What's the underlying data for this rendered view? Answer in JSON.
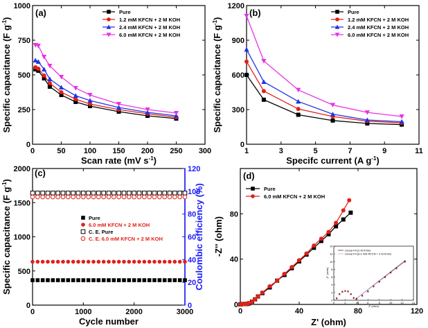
{
  "colors": {
    "pure": "#000000",
    "k12": "#e0201a",
    "k24": "#1f33e6",
    "k60": "#e633e6",
    "ce_axis": "#1a1aff"
  },
  "chart_data": [
    {
      "id": "a",
      "panel_label": "(a)",
      "type": "line",
      "xlabel": "Scan rate (mV s",
      "xlabel_sup": "-1",
      "xlabel_end": ")",
      "ylabel": "Specific capacitance (F g",
      "ylabel_sup": "-1",
      "ylabel_end": ")",
      "xlim": [
        0,
        300
      ],
      "ylim": [
        0,
        1000
      ],
      "xticks": [
        0,
        50,
        100,
        150,
        200,
        250,
        300
      ],
      "yticks": [
        0,
        250,
        500,
        750,
        1000
      ],
      "legend_position": "top-right",
      "x": [
        5,
        10,
        20,
        30,
        50,
        75,
        100,
        150,
        200,
        250
      ],
      "series": [
        {
          "name": "Pure",
          "marker": "square",
          "color": "#000000",
          "values": [
            540,
            530,
            475,
            415,
            355,
            305,
            275,
            235,
            205,
            185
          ]
        },
        {
          "name": "1.2 mM KFCN + 2 M KOH",
          "marker": "circle",
          "color": "#e0201a",
          "values": [
            555,
            545,
            495,
            440,
            375,
            325,
            290,
            250,
            220,
            195
          ]
        },
        {
          "name": "2.4 mM KFCN + 2 M KOH",
          "marker": "triangle-up",
          "color": "#1f33e6",
          "values": [
            605,
            595,
            540,
            470,
            410,
            350,
            315,
            265,
            230,
            205
          ]
        },
        {
          "name": "6.0 mM KFCN + 2 M KOH",
          "marker": "triangle-down",
          "color": "#e633e6",
          "values": [
            715,
            710,
            630,
            565,
            485,
            405,
            355,
            290,
            250,
            225
          ]
        }
      ]
    },
    {
      "id": "b",
      "panel_label": "(b)",
      "type": "line",
      "xlabel": "Specifc current (A g",
      "xlabel_sup": "-1",
      "xlabel_end": ")",
      "ylabel": "Specific capacitance (F g",
      "ylabel_sup": "-1",
      "ylabel_end": ")",
      "xlim": [
        1,
        11
      ],
      "ylim": [
        0,
        1200
      ],
      "xticks": [
        1,
        3,
        5,
        7,
        9,
        11
      ],
      "yticks": [
        0,
        300,
        600,
        900,
        1200
      ],
      "legend_position": "top-right",
      "x": [
        1,
        2,
        4,
        6,
        8,
        10
      ],
      "series": [
        {
          "name": "Pure",
          "marker": "square",
          "color": "#000000",
          "values": [
            600,
            385,
            255,
            205,
            180,
            170
          ]
        },
        {
          "name": "1.2 mM KFCN + 2 M KOH",
          "marker": "circle",
          "color": "#e0201a",
          "values": [
            715,
            460,
            305,
            240,
            200,
            185
          ]
        },
        {
          "name": "2.4 mM KFCN + 2 M KOH",
          "marker": "triangle-up",
          "color": "#1f33e6",
          "values": [
            820,
            540,
            370,
            260,
            210,
            195
          ]
        },
        {
          "name": "6.0 mM KFCN + 2 M KOH",
          "marker": "triangle-down",
          "color": "#e633e6",
          "values": [
            1110,
            720,
            470,
            340,
            275,
            240
          ]
        }
      ]
    },
    {
      "id": "c",
      "panel_label": "(c)",
      "type": "scatter",
      "xlabel": "Cycle number",
      "ylabel": "Specific capacitance (F g",
      "ylabel_sup": "-1",
      "ylabel_end": ")",
      "ylabel_right": "Coulombic efficiency (%)",
      "xlim": [
        0,
        3000
      ],
      "ylim": [
        0,
        2000
      ],
      "ylim_right": [
        0,
        120
      ],
      "xticks": [
        0,
        1000,
        2000,
        3000
      ],
      "yticks": [
        0,
        500,
        1000,
        1500,
        2000
      ],
      "yticks_right": [
        0,
        20,
        40,
        60,
        80,
        100,
        120
      ],
      "legend_position": "center-left",
      "legend": [
        "Pure",
        "6.0 mM KFCN + 2 M KOH",
        "C. E. Pure",
        "C. E. 6.0 mM KFCN + 2 M KOH"
      ],
      "series": [
        {
          "name": "Pure",
          "axis": "left",
          "marker": "filled-square",
          "color": "#000000",
          "x_start": 0,
          "x_end": 3000,
          "x_step": 100,
          "value": 365
        },
        {
          "name": "6.0 mM KFCN + 2 M KOH",
          "axis": "left",
          "marker": "filled-circle",
          "color": "#e0201a",
          "x_start": 0,
          "x_end": 3000,
          "x_step": 100,
          "value": 635
        },
        {
          "name": "C. E. Pure",
          "axis": "right",
          "marker": "open-square",
          "color": "#000000",
          "x_start": 0,
          "x_end": 3000,
          "x_step": 100,
          "value": 98.5
        },
        {
          "name": "C. E. 6.0 mM KFCN + 2 M KOH",
          "axis": "right",
          "marker": "open-circle",
          "color": "#e0201a",
          "x_start": 0,
          "x_end": 3000,
          "x_step": 100,
          "value": 95
        }
      ]
    },
    {
      "id": "d",
      "panel_label": "(d)",
      "type": "line",
      "xlabel": "Z' (ohm)",
      "ylabel": "-Z'' (ohm)",
      "xlim": [
        0,
        120
      ],
      "ylim": [
        0,
        120
      ],
      "xticks": [
        0,
        40,
        80,
        120
      ],
      "yticks": [
        0,
        40,
        80
      ],
      "legend_position": "top-left",
      "series": [
        {
          "name": "Pure",
          "marker": "square",
          "color": "#000000",
          "x": [
            0,
            1,
            2,
            3,
            4,
            5,
            6,
            8,
            10,
            12,
            15,
            20,
            25,
            30,
            35,
            40,
            45,
            50,
            55,
            60,
            65,
            70,
            75
          ],
          "y": [
            0,
            0.3,
            0.4,
            0.4,
            0.3,
            0.5,
            1,
            2.5,
            4.5,
            7,
            10,
            15,
            21,
            26,
            32,
            38,
            44,
            50,
            56,
            62,
            69,
            75,
            81
          ]
        },
        {
          "name": "6.0 mM KFCN + 2 M KOH",
          "marker": "circle",
          "color": "#e0201a",
          "x": [
            0,
            1,
            2,
            3,
            4,
            5,
            6,
            8,
            10,
            12,
            15,
            20,
            25,
            30,
            35,
            40,
            45,
            50,
            55,
            60,
            65,
            70,
            74
          ],
          "y": [
            0,
            0.3,
            0.4,
            0.4,
            0.3,
            0.6,
            1.2,
            2.5,
            4.5,
            7,
            10.5,
            16,
            21,
            27,
            33,
            39,
            45,
            52,
            58,
            64,
            72,
            83,
            92
          ]
        }
      ],
      "inset": {
        "xlabel": "Z' (ohm)",
        "ylabel": "-Z'' (ohm)",
        "xlim": [
          0,
          14
        ],
        "ylim": [
          0,
          14
        ],
        "xticks": [
          0,
          2,
          4,
          6,
          8,
          10,
          12,
          14
        ],
        "yticks": [
          0,
          2,
          4,
          6,
          8,
          10,
          12,
          14
        ],
        "legend": [
          "Linear Fit (2 M KOH)",
          "Linear Fit (6.0 mM KFCN + 2 M KOH)"
        ],
        "series": [
          {
            "name": "Pure",
            "marker": "square",
            "color": "#000000",
            "x": [
              0.5,
              1,
              1.5,
              2,
              2.5,
              3,
              3.5,
              4,
              5,
              6,
              7,
              8,
              9,
              10,
              11,
              12.5
            ],
            "y": [
              0.5,
              1.6,
              2.2,
              2.4,
              2.3,
              1.6,
              0.6,
              0.4,
              1.2,
              2.3,
              3.6,
              4.8,
              6.0,
              7.2,
              8.3,
              10.1
            ]
          },
          {
            "name": "6.0 mM KFCN + 2 M KOH",
            "marker": "circle",
            "color": "#e0201a",
            "x": [
              0.5,
              1,
              1.5,
              2,
              2.5,
              3,
              3.5,
              4,
              5,
              6,
              7,
              8,
              9,
              10,
              11,
              12.5
            ],
            "y": [
              0.4,
              1.5,
              2.1,
              2.3,
              2.2,
              1.5,
              0.5,
              0.3,
              1.1,
              2.2,
              3.5,
              4.7,
              5.9,
              7.1,
              8.2,
              9.9
            ]
          }
        ],
        "fits": [
          {
            "name": "Linear Fit (2 M KOH)",
            "color": "#7a1a1a",
            "x": [
              3.6,
              12.5
            ],
            "y": [
              0,
              10.2
            ]
          },
          {
            "name": "Linear Fit (6.0 mM KFCN + 2 M KOH)",
            "color": "#b0b0ff",
            "x": [
              3.6,
              12.5
            ],
            "y": [
              0,
              10.0
            ]
          }
        ]
      }
    }
  ]
}
